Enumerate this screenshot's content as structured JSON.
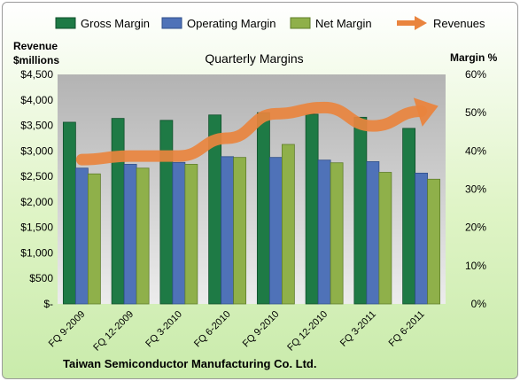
{
  "chart_data": {
    "type": "bar",
    "title": "Quarterly Margins",
    "footer": "Taiwan Semiconductor Manufacturing Co. Ltd.",
    "y_left_label": [
      "Revenue",
      "$millions"
    ],
    "y_right_label": "Margin %",
    "categories": [
      "FQ 9-2009",
      "FQ 12-2009",
      "FQ 3-2010",
      "FQ 6-2010",
      "FQ 9-2010",
      "FQ 12-2010",
      "FQ 3-2011",
      "FQ 6-2011"
    ],
    "y_left_ticks": [
      "$-",
      "$500",
      "$1,000",
      "$1,500",
      "$2,000",
      "$2,500",
      "$3,000",
      "$3,500",
      "$4,000",
      "$4,500"
    ],
    "y_right_ticks": [
      "0%",
      "10%",
      "20%",
      "30%",
      "40%",
      "50%",
      "60%"
    ],
    "ylim_left": [
      0,
      4500
    ],
    "ylim_right": [
      0,
      60
    ],
    "grid": false,
    "legend_position": "top",
    "series": [
      {
        "name": "Gross Margin",
        "axis": "right",
        "kind": "bar",
        "color": "#1e7a45",
        "values": [
          47.5,
          48.5,
          48,
          49.4,
          50,
          49.6,
          48.8,
          45.9
        ]
      },
      {
        "name": "Operating Margin",
        "axis": "right",
        "kind": "bar",
        "color": "#4f72b8",
        "values": [
          35.5,
          36.5,
          37,
          38.5,
          38.3,
          37.6,
          37.2,
          34.2
        ]
      },
      {
        "name": "Net Margin",
        "axis": "right",
        "kind": "bar",
        "color": "#8fb04a",
        "values": [
          34,
          35.5,
          36.5,
          38.3,
          41.7,
          36.9,
          34.4,
          32.6
        ]
      },
      {
        "name": "Revenues",
        "axis": "left",
        "kind": "line",
        "color": "#e9843e",
        "values": [
          2830,
          2900,
          2900,
          3250,
          3730,
          3850,
          3490,
          3780
        ]
      }
    ]
  }
}
